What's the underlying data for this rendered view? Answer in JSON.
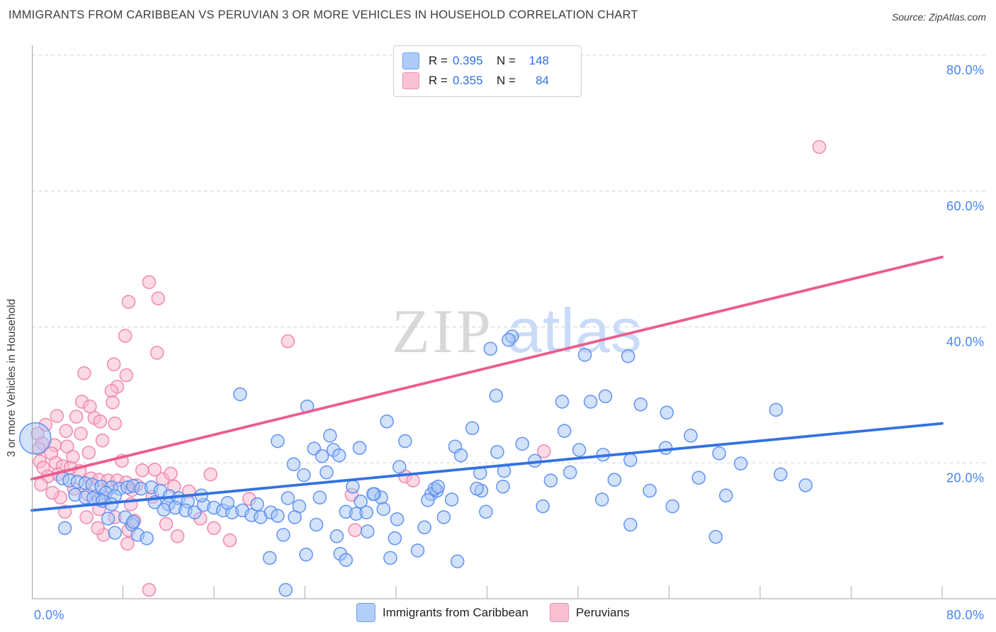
{
  "header": {
    "title": "IMMIGRANTS FROM CARIBBEAN VS PERUVIAN 3 OR MORE VEHICLES IN HOUSEHOLD CORRELATION CHART",
    "source": "Source: ZipAtlas.com"
  },
  "stats_legend": {
    "rows": [
      {
        "series": "caribbean",
        "r_label": "R =",
        "r_value": "0.395",
        "n_label": "N =",
        "n_value": "148"
      },
      {
        "series": "peruvian",
        "r_label": "R =",
        "r_value": "0.355",
        "n_label": "N =",
        "n_value": "84"
      }
    ]
  },
  "bottom_legend": {
    "items": [
      {
        "label": "Immigrants from Caribbean"
      },
      {
        "label": "Peruvians"
      }
    ]
  },
  "watermark": {
    "zip": "ZIP",
    "atlas": "atlas"
  },
  "theme": {
    "axis_label_blue": "#4285f4",
    "number_blue": "#2f6fe8",
    "blue_stroke": "#5b8ef0",
    "blue_fill": "#a6c5f7",
    "blue_trend": "#3372e0",
    "pink_stroke": "#ef83ab",
    "pink_fill": "#f7bcd1",
    "pink_trend": "#ec5c8d",
    "grid": "#d4d4d4",
    "axis": "#9e9e9e"
  },
  "chart_data": {
    "type": "scatter",
    "title": "IMMIGRANTS FROM CARIBBEAN VS PERUVIAN 3 OR MORE VEHICLES IN HOUSEHOLD CORRELATION CHART",
    "xlabel": "",
    "ylabel": "3 or more Vehicles in Household",
    "xlim": [
      0,
      84.7
    ],
    "ylim": [
      0,
      81.4
    ],
    "grid": "dashed-horizontal",
    "x_tick_labels": [
      {
        "value": 0,
        "label": "0.0%"
      },
      {
        "value": 80,
        "label": "80.0%"
      }
    ],
    "y_tick_labels": [
      {
        "value": 80,
        "label": "80.0%"
      },
      {
        "value": 60,
        "label": "60.0%"
      },
      {
        "value": 40,
        "label": "40.0%"
      },
      {
        "value": 20,
        "label": "20.0%"
      }
    ],
    "series": [
      {
        "name": "Immigrants from Caribbean",
        "R": 0.395,
        "N": 148,
        "trend": {
          "x1": 0,
          "y1": 13.0,
          "x2": 80,
          "y2": 25.8
        },
        "large_point": [
          0.3,
          23.6
        ],
        "points": [
          [
            2.7,
            17.7
          ],
          [
            3.3,
            17.4
          ],
          [
            4.0,
            17.2
          ],
          [
            4.7,
            17.0
          ],
          [
            5.3,
            16.8
          ],
          [
            6.1,
            16.5
          ],
          [
            7.0,
            16.4
          ],
          [
            7.7,
            16.2
          ],
          [
            8.4,
            16.4
          ],
          [
            6.5,
            15.6
          ],
          [
            7.3,
            15.1
          ],
          [
            5.9,
            14.6
          ],
          [
            3.8,
            15.3
          ],
          [
            4.7,
            14.9
          ],
          [
            5.4,
            14.8
          ],
          [
            6.2,
            14.4
          ],
          [
            7.0,
            13.9
          ],
          [
            6.7,
            11.8
          ],
          [
            8.2,
            12.0
          ],
          [
            8.8,
            10.9
          ],
          [
            7.3,
            9.7
          ],
          [
            2.9,
            10.4
          ],
          [
            8.9,
            16.6
          ],
          [
            9.6,
            16.2
          ],
          [
            10.5,
            16.4
          ],
          [
            11.3,
            15.9
          ],
          [
            12.1,
            15.1
          ],
          [
            12.9,
            14.8
          ],
          [
            13.7,
            14.3
          ],
          [
            12.0,
            13.9
          ],
          [
            12.6,
            13.4
          ],
          [
            13.5,
            13.0
          ],
          [
            14.3,
            12.7
          ],
          [
            15.1,
            13.8
          ],
          [
            16.0,
            13.4
          ],
          [
            16.8,
            13.0
          ],
          [
            17.6,
            12.7
          ],
          [
            18.5,
            13.0
          ],
          [
            19.3,
            12.3
          ],
          [
            20.1,
            12.0
          ],
          [
            21.0,
            12.7
          ],
          [
            21.6,
            12.2
          ],
          [
            8.9,
            11.3
          ],
          [
            9.3,
            9.4
          ],
          [
            10.1,
            8.9
          ],
          [
            20.9,
            6.0
          ],
          [
            22.3,
            1.3
          ],
          [
            18.3,
            30.1
          ],
          [
            10.8,
            14.2
          ],
          [
            11.6,
            13.1
          ],
          [
            14.9,
            15.2
          ],
          [
            17.2,
            14.1
          ],
          [
            19.8,
            13.9
          ],
          [
            22.5,
            14.8
          ],
          [
            23.5,
            13.6
          ],
          [
            25.3,
            14.9
          ],
          [
            28.9,
            14.3
          ],
          [
            30.1,
            15.4
          ],
          [
            30.7,
            14.9
          ],
          [
            27.6,
            12.8
          ],
          [
            28.5,
            12.5
          ],
          [
            29.4,
            12.7
          ],
          [
            30.9,
            13.2
          ],
          [
            32.1,
            11.7
          ],
          [
            29.5,
            9.9
          ],
          [
            35.1,
            15.4
          ],
          [
            35.6,
            15.9
          ],
          [
            34.8,
            14.5
          ],
          [
            36.9,
            14.6
          ],
          [
            39.5,
            15.9
          ],
          [
            39.9,
            12.8
          ],
          [
            44.9,
            13.6
          ],
          [
            24.1,
            6.5
          ],
          [
            27.1,
            6.6
          ],
          [
            27.6,
            5.7
          ],
          [
            31.5,
            6.0
          ],
          [
            33.9,
            7.1
          ],
          [
            37.4,
            5.5
          ],
          [
            22.1,
            9.4
          ],
          [
            23.1,
            12.0
          ],
          [
            25.0,
            10.9
          ],
          [
            26.8,
            9.2
          ],
          [
            31.9,
            8.9
          ],
          [
            34.5,
            10.5
          ],
          [
            36.2,
            12.0
          ],
          [
            24.2,
            28.3
          ],
          [
            31.2,
            26.1
          ],
          [
            26.2,
            24.0
          ],
          [
            21.6,
            23.2
          ],
          [
            24.8,
            22.1
          ],
          [
            26.5,
            21.9
          ],
          [
            28.8,
            22.2
          ],
          [
            27.0,
            21.1
          ],
          [
            25.5,
            21.0
          ],
          [
            32.8,
            23.2
          ],
          [
            37.2,
            22.4
          ],
          [
            37.7,
            21.1
          ],
          [
            38.7,
            25.1
          ],
          [
            40.9,
            21.6
          ],
          [
            23.0,
            19.8
          ],
          [
            23.9,
            18.2
          ],
          [
            25.9,
            18.6
          ],
          [
            32.3,
            19.4
          ],
          [
            35.4,
            16.2
          ],
          [
            35.7,
            16.5
          ],
          [
            28.2,
            16.5
          ],
          [
            30.0,
            15.4
          ],
          [
            39.4,
            18.5
          ],
          [
            39.1,
            16.2
          ],
          [
            41.5,
            18.8
          ],
          [
            41.4,
            16.5
          ],
          [
            40.8,
            29.9
          ],
          [
            42.2,
            38.6
          ],
          [
            40.3,
            36.8
          ],
          [
            41.9,
            38.1
          ],
          [
            48.6,
            35.9
          ],
          [
            52.4,
            35.7
          ],
          [
            46.6,
            29.0
          ],
          [
            49.1,
            29.0
          ],
          [
            50.4,
            29.8
          ],
          [
            53.5,
            28.6
          ],
          [
            55.8,
            27.4
          ],
          [
            46.8,
            24.7
          ],
          [
            65.4,
            27.8
          ],
          [
            62.3,
            19.9
          ],
          [
            65.8,
            18.3
          ],
          [
            68.0,
            16.7
          ],
          [
            48.1,
            21.9
          ],
          [
            50.2,
            21.2
          ],
          [
            52.6,
            20.4
          ],
          [
            55.7,
            22.2
          ],
          [
            57.9,
            24.0
          ],
          [
            60.4,
            21.4
          ],
          [
            51.2,
            17.5
          ],
          [
            54.3,
            15.9
          ],
          [
            58.6,
            17.8
          ],
          [
            61.0,
            15.2
          ],
          [
            47.3,
            18.6
          ],
          [
            44.2,
            20.3
          ],
          [
            43.1,
            22.8
          ],
          [
            45.6,
            17.4
          ],
          [
            50.1,
            14.6
          ],
          [
            52.6,
            10.9
          ],
          [
            56.3,
            13.6
          ],
          [
            60.1,
            9.1
          ]
        ]
      },
      {
        "name": "Peruvians",
        "R": 0.355,
        "N": 84,
        "trend": {
          "x1": 0,
          "y1": 17.6,
          "x2": 80,
          "y2": 50.3
        },
        "points": [
          [
            69.2,
            66.5
          ],
          [
            10.3,
            46.6
          ],
          [
            8.5,
            43.7
          ],
          [
            11.1,
            44.2
          ],
          [
            22.5,
            37.9
          ],
          [
            8.2,
            38.7
          ],
          [
            11.0,
            36.2
          ],
          [
            7.2,
            34.5
          ],
          [
            4.6,
            33.2
          ],
          [
            8.3,
            32.9
          ],
          [
            7.5,
            31.2
          ],
          [
            4.4,
            29.0
          ],
          [
            7.0,
            30.6
          ],
          [
            7.1,
            28.9
          ],
          [
            3.9,
            26.8
          ],
          [
            5.5,
            26.6
          ],
          [
            6.0,
            26.1
          ],
          [
            7.3,
            25.8
          ],
          [
            3.0,
            24.7
          ],
          [
            4.3,
            24.3
          ],
          [
            3.1,
            22.4
          ],
          [
            0.9,
            22.9
          ],
          [
            2.0,
            22.6
          ],
          [
            0.6,
            22.1
          ],
          [
            1.7,
            21.4
          ],
          [
            0.7,
            20.2
          ],
          [
            2.1,
            20.0
          ],
          [
            1.0,
            19.3
          ],
          [
            2.7,
            19.5
          ],
          [
            3.4,
            19.3
          ],
          [
            4.2,
            18.8
          ],
          [
            2.3,
            18.3
          ],
          [
            1.4,
            18.0
          ],
          [
            5.2,
            17.7
          ],
          [
            5.9,
            17.5
          ],
          [
            6.7,
            17.4
          ],
          [
            7.5,
            17.4
          ],
          [
            8.3,
            17.1
          ],
          [
            9.2,
            16.7
          ],
          [
            6.1,
            15.1
          ],
          [
            8.8,
            16.0
          ],
          [
            2.5,
            14.9
          ],
          [
            8.7,
            13.9
          ],
          [
            5.9,
            13.2
          ],
          [
            4.8,
            12.0
          ],
          [
            7.3,
            12.0
          ],
          [
            9.0,
            11.5
          ],
          [
            6.3,
            9.4
          ],
          [
            8.5,
            10.1
          ],
          [
            8.4,
            8.1
          ],
          [
            5.8,
            10.4
          ],
          [
            10.3,
            1.3
          ],
          [
            28.1,
            15.3
          ],
          [
            28.4,
            10.1
          ],
          [
            15.7,
            18.3
          ],
          [
            19.1,
            14.7
          ],
          [
            17.4,
            8.6
          ],
          [
            12.5,
            16.5
          ],
          [
            13.8,
            15.8
          ],
          [
            11.5,
            17.6
          ],
          [
            10.8,
            19.0
          ],
          [
            12.2,
            18.4
          ],
          [
            32.8,
            18.0
          ],
          [
            33.5,
            17.4
          ],
          [
            45.0,
            21.7
          ],
          [
            11.8,
            11.0
          ],
          [
            14.8,
            11.8
          ],
          [
            12.8,
            9.2
          ],
          [
            16.0,
            10.4
          ],
          [
            3.7,
            16.2
          ],
          [
            4.9,
            15.4
          ],
          [
            2.9,
            12.8
          ],
          [
            1.8,
            15.6
          ],
          [
            0.8,
            16.8
          ],
          [
            1.2,
            25.6
          ],
          [
            2.2,
            26.9
          ],
          [
            0.5,
            24.3
          ],
          [
            5.1,
            28.3
          ],
          [
            6.2,
            23.3
          ],
          [
            5.0,
            21.5
          ],
          [
            3.6,
            20.9
          ],
          [
            9.7,
            18.9
          ],
          [
            10.6,
            15.0
          ],
          [
            7.9,
            20.3
          ]
        ]
      }
    ]
  }
}
